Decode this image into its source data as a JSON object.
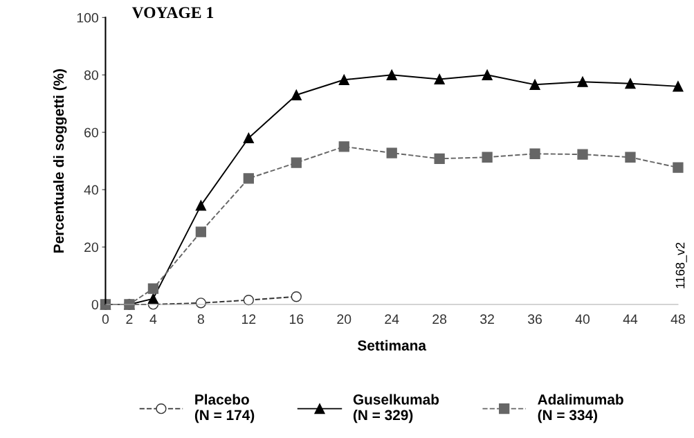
{
  "chart_data": {
    "type": "line",
    "title": "VOYAGE 1",
    "xlabel": "Settimana",
    "ylabel": "Percentuale di soggetti (%)",
    "x": [
      0,
      2,
      4,
      8,
      12,
      16,
      20,
      24,
      28,
      32,
      36,
      40,
      44,
      48
    ],
    "xlim": [
      0,
      48
    ],
    "xticks": [
      0,
      2,
      4,
      8,
      12,
      16,
      20,
      24,
      28,
      32,
      36,
      40,
      44,
      48
    ],
    "ylim": [
      0,
      100
    ],
    "yticks": [
      0,
      20,
      40,
      60,
      80,
      100
    ],
    "grid": false,
    "legend": "bottom",
    "annotations": [
      "1168_v2"
    ],
    "series": [
      {
        "name": "Placebo\n(N = 174)",
        "color": "#333333",
        "marker": "circle",
        "line_style": "dashed",
        "values": [
          0,
          0,
          0,
          0.5,
          1.5,
          2.7,
          null,
          null,
          null,
          null,
          null,
          null,
          null,
          null
        ]
      },
      {
        "name": "Guselkumab\n(N = 329)",
        "color": "#000000",
        "marker": "triangle",
        "line_style": "solid",
        "values": [
          0,
          0,
          2,
          34.5,
          58,
          73,
          78.3,
          80,
          78.5,
          80,
          76.6,
          77.6,
          77,
          76
        ]
      },
      {
        "name": "Adalimumab\n(N = 334)",
        "color": "#666666",
        "marker": "square",
        "line_style": "dashed",
        "values": [
          0,
          0,
          5.5,
          25.3,
          43.9,
          49.4,
          55,
          52.8,
          50.8,
          51.3,
          52.5,
          52.3,
          51.3,
          47.7
        ]
      }
    ]
  }
}
